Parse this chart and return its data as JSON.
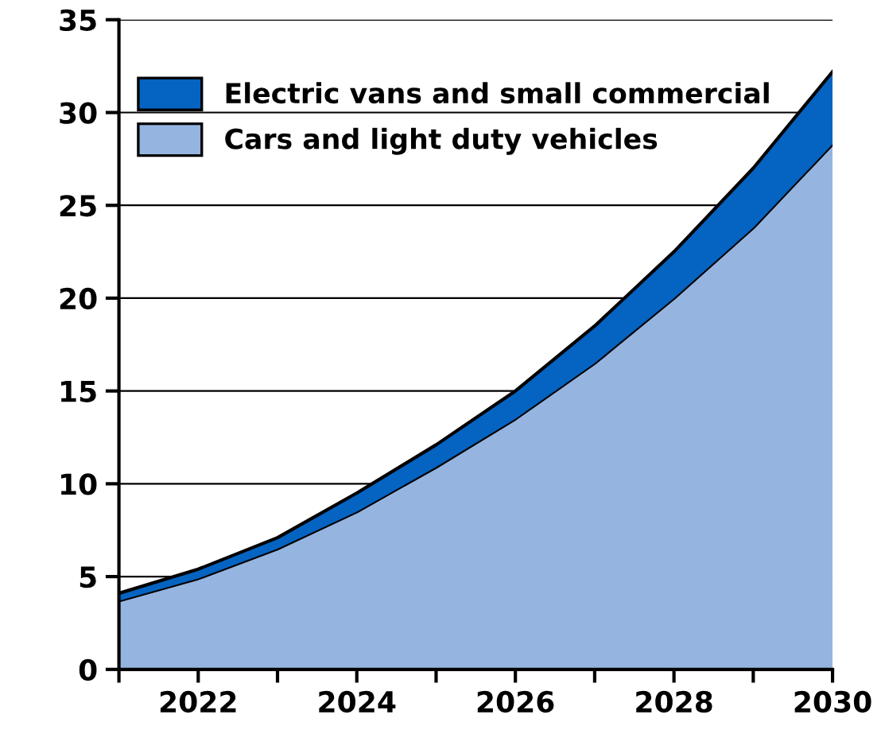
{
  "chart_data": {
    "type": "area",
    "stacked": true,
    "x": [
      2021,
      2022,
      2023,
      2024,
      2025,
      2026,
      2027,
      2028,
      2029,
      2030
    ],
    "series": [
      {
        "name": "Cars and light duty vehicles",
        "color": "#95b5e0",
        "values": [
          3.7,
          4.9,
          6.5,
          8.5,
          10.9,
          13.5,
          16.5,
          20.0,
          23.8,
          28.3
        ]
      },
      {
        "name": "Electric vans and small commercial",
        "color": "#0563c1",
        "values": [
          0.4,
          0.5,
          0.6,
          1.0,
          1.2,
          1.5,
          2.0,
          2.5,
          3.2,
          3.9
        ]
      }
    ],
    "xlim": [
      2021,
      2030
    ],
    "xticks": [
      {
        "value": 2021,
        "label": null
      },
      2022,
      {
        "value": 2023,
        "label": null
      },
      2024,
      {
        "value": 2025,
        "label": null
      },
      2026,
      {
        "value": 2027,
        "label": null
      },
      2028,
      {
        "value": 2029,
        "label": null
      },
      2030
    ],
    "ylim": [
      0,
      35
    ],
    "yticks": [
      0,
      5,
      10,
      15,
      20,
      25,
      30,
      35
    ],
    "grid": "y",
    "legend": "top left"
  }
}
